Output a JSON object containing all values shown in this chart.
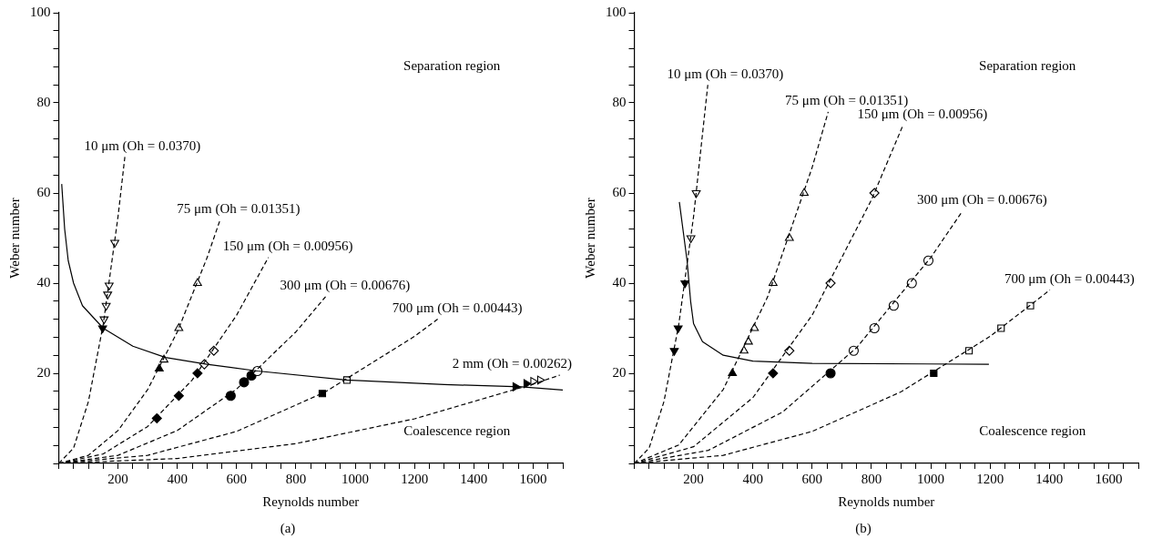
{
  "chart_data": [
    {
      "type": "scatter",
      "xlabel": "Reynolds number",
      "ylabel": "Weber number",
      "xlim": [
        0,
        1700
      ],
      "ylim": [
        0,
        100
      ],
      "legend": false,
      "grid": false,
      "xticks": [
        {
          "value": 0,
          "label": null
        },
        {
          "value": 50,
          "label": null
        },
        {
          "value": 100,
          "label": null
        },
        {
          "value": 150,
          "label": null
        },
        200,
        {
          "value": 250,
          "label": null
        },
        {
          "value": 300,
          "label": null
        },
        {
          "value": 350,
          "label": null
        },
        400,
        {
          "value": 450,
          "label": null
        },
        {
          "value": 500,
          "label": null
        },
        {
          "value": 550,
          "label": null
        },
        600,
        {
          "value": 650,
          "label": null
        },
        {
          "value": 700,
          "label": null
        },
        {
          "value": 750,
          "label": null
        },
        800,
        {
          "value": 850,
          "label": null
        },
        {
          "value": 900,
          "label": null
        },
        {
          "value": 950,
          "label": null
        },
        1000,
        {
          "value": 1050,
          "label": null
        },
        {
          "value": 1100,
          "label": null
        },
        {
          "value": 1150,
          "label": null
        },
        1200,
        {
          "value": 1250,
          "label": null
        },
        {
          "value": 1300,
          "label": null
        },
        {
          "value": 1350,
          "label": null
        },
        1400,
        {
          "value": 1450,
          "label": null
        },
        {
          "value": 1500,
          "label": null
        },
        {
          "value": 1550,
          "label": null
        },
        1600,
        {
          "value": 1650,
          "label": null
        },
        {
          "value": 1700,
          "label": null
        }
      ],
      "yticks": [
        {
          "value": 0,
          "label": null
        },
        {
          "value": 4,
          "label": null
        },
        {
          "value": 8,
          "label": null
        },
        {
          "value": 12,
          "label": null
        },
        {
          "value": 16,
          "label": null
        },
        20,
        {
          "value": 24,
          "label": null
        },
        {
          "value": 28,
          "label": null
        },
        {
          "value": 32,
          "label": null
        },
        {
          "value": 36,
          "label": null
        },
        40,
        {
          "value": 44,
          "label": null
        },
        {
          "value": 48,
          "label": null
        },
        {
          "value": 52,
          "label": null
        },
        {
          "value": 56,
          "label": null
        },
        60,
        {
          "value": 64,
          "label": null
        },
        {
          "value": 68,
          "label": null
        },
        {
          "value": 72,
          "label": null
        },
        {
          "value": 76,
          "label": null
        },
        80,
        {
          "value": 84,
          "label": null
        },
        {
          "value": 88,
          "label": null
        },
        {
          "value": 92,
          "label": null
        },
        {
          "value": 96,
          "label": null
        },
        100
      ],
      "series": [
        {
          "type": "line",
          "name": "10 μm (Oh = 0.0370)",
          "color": "#000000",
          "line_style": "dashed",
          "marker": "none",
          "x": [
            0,
            50,
            100,
            150,
            200,
            223
          ],
          "values": [
            0,
            3.4,
            13.7,
            30.8,
            54.8,
            68
          ]
        },
        {
          "type": "line",
          "name": "75 μm (Oh = 0.01351)",
          "color": "#000000",
          "line_style": "dashed",
          "marker": "none",
          "x": [
            0,
            100,
            200,
            300,
            400,
            500,
            544
          ],
          "values": [
            0,
            1.8,
            7.3,
            16.4,
            29.2,
            45.6,
            54
          ]
        },
        {
          "type": "line",
          "name": "150 μm (Oh = 0.00956)",
          "color": "#000000",
          "line_style": "dashed",
          "marker": "none",
          "x": [
            0,
            150,
            300,
            450,
            600,
            707
          ],
          "values": [
            0,
            2.1,
            8.2,
            18.5,
            32.9,
            45.7
          ]
        },
        {
          "type": "line",
          "name": "300 μm (Oh = 0.00676)",
          "color": "#000000",
          "line_style": "dashed",
          "marker": "none",
          "x": [
            0,
            200,
            400,
            600,
            800,
            900
          ],
          "values": [
            0,
            1.8,
            7.3,
            16.5,
            29.2,
            37
          ]
        },
        {
          "type": "line",
          "name": "700 μm (Oh = 0.00443)",
          "color": "#000000",
          "line_style": "dashed",
          "marker": "none",
          "x": [
            0,
            300,
            600,
            900,
            1200,
            1278
          ],
          "values": [
            0,
            1.8,
            7.1,
            15.9,
            28.2,
            32
          ]
        },
        {
          "type": "line",
          "name": "2 mm (Oh = 0.00262)",
          "color": "#000000",
          "line_style": "dashed",
          "marker": "none",
          "x": [
            0,
            400,
            800,
            1200,
            1600,
            1690
          ],
          "values": [
            0,
            1.1,
            4.4,
            9.9,
            17.6,
            19.6
          ]
        },
        {
          "type": "line",
          "color": "#000000",
          "line_style": "solid",
          "marker": "none",
          "x": [
            10,
            20,
            32,
            50,
            80,
            150,
            250,
            360,
            500,
            670,
            970,
            1300,
            1560,
            1700
          ],
          "values": [
            62,
            52,
            45,
            40,
            35,
            30,
            26,
            23.5,
            22,
            20.5,
            18.5,
            17.5,
            17,
            16.3
          ]
        },
        {
          "type": "scatter",
          "color": "#ffffff",
          "marker": "triangle-down",
          "x": [
            189,
            170,
            165,
            160,
            153
          ],
          "values": [
            49,
            39.5,
            37.5,
            35,
            32
          ]
        },
        {
          "type": "scatter",
          "color": "#000000",
          "marker": "triangle-down",
          "x": [
            148
          ],
          "values": [
            30
          ]
        },
        {
          "type": "scatter",
          "color": "#ffffff",
          "marker": "triangle",
          "x": [
            468,
            405,
            355
          ],
          "values": [
            40,
            30,
            23
          ]
        },
        {
          "type": "scatter",
          "color": "#000000",
          "marker": "triangle",
          "x": [
            339
          ],
          "values": [
            21
          ]
        },
        {
          "type": "scatter",
          "color": "#ffffff",
          "marker": "diamond",
          "x": [
            523,
            491
          ],
          "values": [
            25,
            22
          ]
        },
        {
          "type": "scatter",
          "color": "#000000",
          "marker": "diamond",
          "x": [
            468,
            405,
            331
          ],
          "values": [
            20,
            15,
            10
          ]
        },
        {
          "type": "scatter",
          "color": "#ffffff",
          "marker": "circle",
          "x": [
            670
          ],
          "values": [
            20.5
          ]
        },
        {
          "type": "scatter",
          "color": "#000000",
          "marker": "circle",
          "x": [
            650,
            625,
            580
          ],
          "values": [
            19.5,
            18,
            15
          ]
        },
        {
          "type": "scatter",
          "color": "#ffffff",
          "marker": "square",
          "x": [
            972
          ],
          "values": [
            18.5
          ]
        },
        {
          "type": "scatter",
          "color": "#000000",
          "marker": "square",
          "x": [
            889
          ],
          "values": [
            15.5
          ]
        },
        {
          "type": "scatter",
          "color": "#ffffff",
          "marker": "triangle-right",
          "x": [
            1600,
            1623
          ],
          "values": [
            18.2,
            18.5
          ]
        },
        {
          "type": "scatter",
          "color": "#000000",
          "marker": "triangle-right",
          "x": [
            1540,
            1577
          ],
          "values": [
            17,
            17.7
          ]
        }
      ],
      "annotations": [
        "Separation region",
        "Coalescence region",
        "(a)"
      ]
    },
    {
      "type": "scatter",
      "xlabel": "Reynolds number",
      "ylabel": "Weber number",
      "xlim": [
        0,
        1700
      ],
      "ylim": [
        0,
        100
      ],
      "legend": false,
      "grid": false,
      "xticks": [
        {
          "value": 0,
          "label": null
        },
        {
          "value": 50,
          "label": null
        },
        {
          "value": 100,
          "label": null
        },
        {
          "value": 150,
          "label": null
        },
        200,
        {
          "value": 250,
          "label": null
        },
        {
          "value": 300,
          "label": null
        },
        {
          "value": 350,
          "label": null
        },
        400,
        {
          "value": 450,
          "label": null
        },
        {
          "value": 500,
          "label": null
        },
        {
          "value": 550,
          "label": null
        },
        600,
        {
          "value": 650,
          "label": null
        },
        {
          "value": 700,
          "label": null
        },
        {
          "value": 750,
          "label": null
        },
        800,
        {
          "value": 850,
          "label": null
        },
        {
          "value": 900,
          "label": null
        },
        {
          "value": 950,
          "label": null
        },
        1000,
        {
          "value": 1050,
          "label": null
        },
        {
          "value": 1100,
          "label": null
        },
        {
          "value": 1150,
          "label": null
        },
        1200,
        {
          "value": 1250,
          "label": null
        },
        {
          "value": 1300,
          "label": null
        },
        {
          "value": 1350,
          "label": null
        },
        1400,
        {
          "value": 1450,
          "label": null
        },
        {
          "value": 1500,
          "label": null
        },
        {
          "value": 1550,
          "label": null
        },
        1600,
        {
          "value": 1650,
          "label": null
        },
        {
          "value": 1700,
          "label": null
        }
      ],
      "yticks": [
        {
          "value": 0,
          "label": null
        },
        {
          "value": 4,
          "label": null
        },
        {
          "value": 8,
          "label": null
        },
        {
          "value": 12,
          "label": null
        },
        {
          "value": 16,
          "label": null
        },
        20,
        {
          "value": 24,
          "label": null
        },
        {
          "value": 28,
          "label": null
        },
        {
          "value": 32,
          "label": null
        },
        {
          "value": 36,
          "label": null
        },
        40,
        {
          "value": 44,
          "label": null
        },
        {
          "value": 48,
          "label": null
        },
        {
          "value": 52,
          "label": null
        },
        {
          "value": 56,
          "label": null
        },
        60,
        {
          "value": 64,
          "label": null
        },
        {
          "value": 68,
          "label": null
        },
        {
          "value": 72,
          "label": null
        },
        {
          "value": 76,
          "label": null
        },
        80,
        {
          "value": 84,
          "label": null
        },
        {
          "value": 88,
          "label": null
        },
        {
          "value": 92,
          "label": null
        },
        {
          "value": 96,
          "label": null
        },
        100
      ],
      "series": [
        {
          "type": "line",
          "name": "10 μm (Oh = 0.0370)",
          "color": "#000000",
          "line_style": "dashed",
          "marker": "none",
          "x": [
            0,
            50,
            100,
            150,
            200,
            248
          ],
          "values": [
            0,
            3.4,
            13.7,
            30.8,
            54.8,
            84
          ]
        },
        {
          "type": "line",
          "name": "75 μm (Oh = 0.01351)",
          "color": "#000000",
          "line_style": "dashed",
          "marker": "none",
          "x": [
            0,
            150,
            300,
            450,
            600,
            654
          ],
          "values": [
            0,
            4.1,
            16.4,
            37,
            65.7,
            78
          ]
        },
        {
          "type": "line",
          "name": "150 μm (Oh = 0.00956)",
          "color": "#000000",
          "line_style": "dashed",
          "marker": "none",
          "x": [
            0,
            200,
            400,
            600,
            800,
            906
          ],
          "values": [
            0,
            3.7,
            14.6,
            32.9,
            58.5,
            75
          ]
        },
        {
          "type": "line",
          "name": "300 μm (Oh = 0.00676)",
          "color": "#000000",
          "line_style": "dashed",
          "marker": "none",
          "x": [
            0,
            250,
            500,
            750,
            1000,
            1107
          ],
          "values": [
            0,
            2.9,
            11.4,
            25.7,
            45.7,
            56
          ]
        },
        {
          "type": "line",
          "name": "700 μm (Oh = 0.00443)",
          "color": "#000000",
          "line_style": "dashed",
          "marker": "none",
          "x": [
            0,
            300,
            600,
            900,
            1200,
            1402
          ],
          "values": [
            0,
            1.8,
            7.1,
            15.9,
            28.2,
            38.5
          ]
        },
        {
          "type": "line",
          "color": "#000000",
          "line_style": "solid",
          "marker": "none",
          "x": [
            152,
            178,
            190,
            200,
            230,
            300,
            400,
            600,
            1196
          ],
          "values": [
            58,
            45,
            36,
            31,
            27,
            24,
            22.7,
            22.2,
            22
          ]
        },
        {
          "type": "scatter",
          "color": "#ffffff",
          "marker": "triangle-down",
          "x": [
            209,
            191
          ],
          "values": [
            60,
            50
          ]
        },
        {
          "type": "scatter",
          "color": "#000000",
          "marker": "triangle-down",
          "x": [
            171,
            148,
            135
          ],
          "values": [
            40,
            30,
            25
          ]
        },
        {
          "type": "scatter",
          "color": "#ffffff",
          "marker": "triangle",
          "x": [
            573,
            523,
            468,
            405,
            385,
            370
          ],
          "values": [
            60,
            50,
            40,
            30,
            27,
            25
          ]
        },
        {
          "type": "scatter",
          "color": "#000000",
          "marker": "triangle",
          "x": [
            331
          ],
          "values": [
            20
          ]
        },
        {
          "type": "scatter",
          "color": "#ffffff",
          "marker": "diamond",
          "x": [
            810,
            662,
            523
          ],
          "values": [
            60,
            40,
            25
          ]
        },
        {
          "type": "scatter",
          "color": "#000000",
          "marker": "diamond",
          "x": [
            468
          ],
          "values": [
            20
          ]
        },
        {
          "type": "scatter",
          "color": "#ffffff",
          "marker": "circle",
          "x": [
            992,
            936,
            875,
            810,
            740
          ],
          "values": [
            45,
            40,
            35,
            30,
            25
          ]
        },
        {
          "type": "scatter",
          "color": "#000000",
          "marker": "circle",
          "x": [
            662
          ],
          "values": [
            20
          ]
        },
        {
          "type": "scatter",
          "color": "#ffffff",
          "marker": "square",
          "x": [
            1336,
            1237,
            1129
          ],
          "values": [
            35,
            30,
            25
          ]
        },
        {
          "type": "scatter",
          "color": "#000000",
          "marker": "square",
          "x": [
            1010
          ],
          "values": [
            20
          ]
        }
      ],
      "annotations": [
        "Separation region",
        "Coalescence region",
        "(b)"
      ]
    }
  ]
}
